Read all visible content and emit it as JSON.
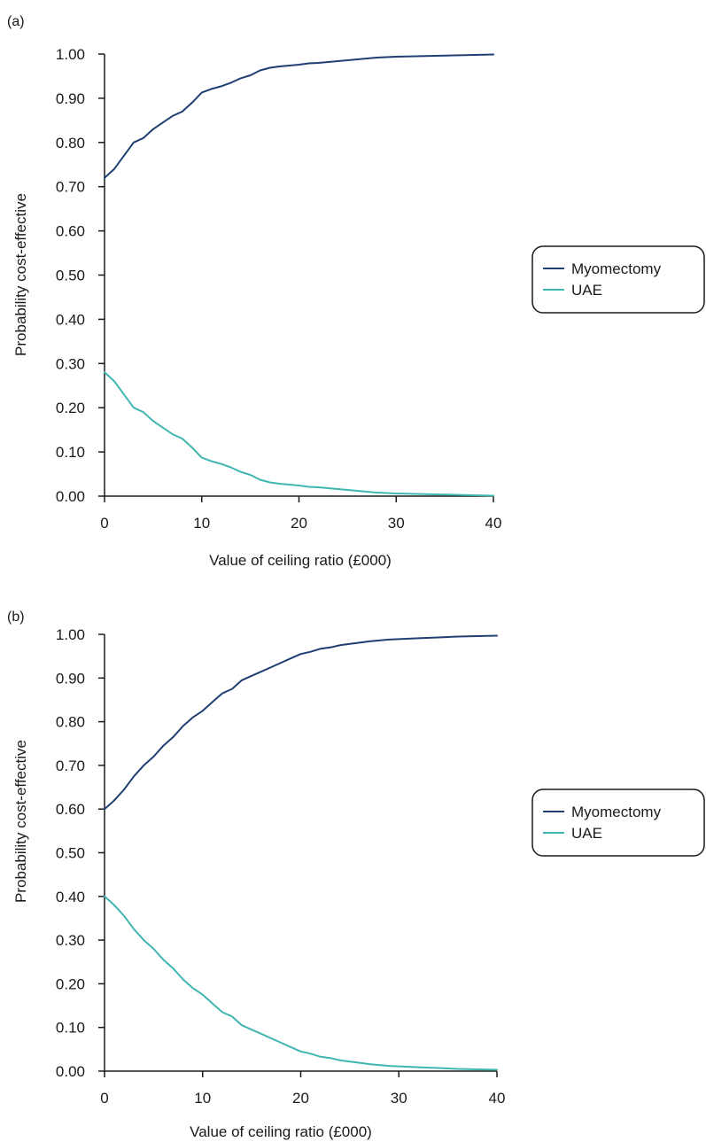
{
  "colors": {
    "myomectomy": "#1f3f73",
    "uae": "#3fb6b0",
    "axis": "#1a1a1a"
  },
  "chart_data": [
    {
      "panel_label": "(a)",
      "type": "line",
      "xlabel": "Value of ceiling ratio (£000)",
      "ylabel": "Probability cost-effective",
      "xlim": [
        0,
        40
      ],
      "ylim": [
        0,
        1
      ],
      "x_ticks": [
        "0",
        "10",
        "20",
        "30",
        "40"
      ],
      "y_ticks": [
        "0.00",
        "0.10",
        "0.20",
        "0.30",
        "0.40",
        "0.50",
        "0.60",
        "0.70",
        "0.80",
        "0.90",
        "1.00"
      ],
      "grid": false,
      "legend": "right",
      "x": [
        0,
        1,
        2,
        3,
        4,
        5,
        6,
        7,
        8,
        9,
        10,
        11,
        12,
        13,
        14,
        15,
        16,
        17,
        18,
        19,
        20,
        21,
        22,
        23,
        24,
        25,
        26,
        27,
        28,
        29,
        30,
        32,
        34,
        36,
        38,
        40
      ],
      "series": [
        {
          "name": "Myomectomy",
          "values": [
            0.72,
            0.74,
            0.77,
            0.8,
            0.81,
            0.83,
            0.845,
            0.86,
            0.87,
            0.89,
            0.913,
            0.921,
            0.927,
            0.935,
            0.945,
            0.952,
            0.963,
            0.969,
            0.972,
            0.974,
            0.976,
            0.979,
            0.98,
            0.982,
            0.984,
            0.986,
            0.988,
            0.99,
            0.992,
            0.993,
            0.994,
            0.995,
            0.996,
            0.997,
            0.998,
            0.999
          ]
        },
        {
          "name": "UAE",
          "values": [
            0.28,
            0.26,
            0.23,
            0.2,
            0.19,
            0.17,
            0.155,
            0.14,
            0.13,
            0.11,
            0.087,
            0.079,
            0.073,
            0.065,
            0.055,
            0.048,
            0.037,
            0.031,
            0.028,
            0.026,
            0.024,
            0.021,
            0.02,
            0.018,
            0.016,
            0.014,
            0.012,
            0.01,
            0.008,
            0.007,
            0.006,
            0.005,
            0.004,
            0.003,
            0.002,
            0.001
          ]
        }
      ]
    },
    {
      "panel_label": "(b)",
      "type": "line",
      "xlabel": "Value of ceiling ratio (£000)",
      "ylabel": "Probability cost-effective",
      "xlim": [
        0,
        40
      ],
      "ylim": [
        0,
        1
      ],
      "x_ticks": [
        "0",
        "10",
        "20",
        "30",
        "40"
      ],
      "y_ticks": [
        "0.00",
        "0.10",
        "0.20",
        "0.30",
        "0.40",
        "0.50",
        "0.60",
        "0.70",
        "0.80",
        "0.90",
        "1.00"
      ],
      "grid": false,
      "legend": "right",
      "x": [
        0,
        1,
        2,
        3,
        4,
        5,
        6,
        7,
        8,
        9,
        10,
        11,
        12,
        13,
        14,
        15,
        16,
        17,
        18,
        19,
        20,
        21,
        22,
        23,
        24,
        25,
        26,
        27,
        28,
        29,
        30,
        32,
        34,
        36,
        38,
        40
      ],
      "series": [
        {
          "name": "Myomectomy",
          "values": [
            0.6,
            0.62,
            0.645,
            0.675,
            0.7,
            0.72,
            0.745,
            0.765,
            0.79,
            0.81,
            0.825,
            0.845,
            0.865,
            0.875,
            0.895,
            0.905,
            0.915,
            0.925,
            0.935,
            0.945,
            0.955,
            0.96,
            0.967,
            0.97,
            0.975,
            0.978,
            0.981,
            0.984,
            0.986,
            0.988,
            0.989,
            0.991,
            0.993,
            0.995,
            0.996,
            0.997
          ]
        },
        {
          "name": "UAE",
          "values": [
            0.4,
            0.38,
            0.355,
            0.325,
            0.3,
            0.28,
            0.255,
            0.235,
            0.21,
            0.19,
            0.175,
            0.155,
            0.135,
            0.125,
            0.105,
            0.095,
            0.085,
            0.075,
            0.065,
            0.055,
            0.045,
            0.04,
            0.033,
            0.03,
            0.025,
            0.022,
            0.019,
            0.016,
            0.014,
            0.012,
            0.011,
            0.009,
            0.007,
            0.005,
            0.004,
            0.003
          ]
        }
      ]
    }
  ]
}
